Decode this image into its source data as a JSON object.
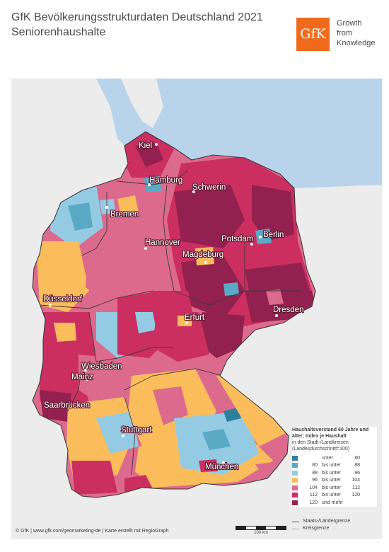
{
  "title": {
    "line1": "GfK Bevölkerungsstrukturdaten Deutschland 2021",
    "line2": "Seniorenhaushalte"
  },
  "logo": {
    "text": "GfK",
    "tagline": [
      "Growth",
      "from",
      "Knowledge"
    ],
    "color": "#f06a1c"
  },
  "cities": [
    "Kiel",
    "Hamburg",
    "Schwerin",
    "Bremen",
    "Berlin",
    "Potsdam",
    "Hannover",
    "Magdeburg",
    "Düsseldorf",
    "Erfurt",
    "Dresden",
    "Wiesbaden",
    "Mainz",
    "Saarbrücken",
    "Stuttgart",
    "München"
  ],
  "legend": {
    "title": "Haushaltsvorstand 60 Jahre und älter; Index je Haushalt",
    "subtitle": "in den Stadt-/Landkreisen (Landesdurchschnitt=100)",
    "classes": [
      {
        "from": "",
        "sep": "unter",
        "to": "80",
        "color": "#2e7f9a"
      },
      {
        "from": "80",
        "sep": "bis unter",
        "to": "88",
        "color": "#5aaac6"
      },
      {
        "from": "88",
        "sep": "bis unter",
        "to": "96",
        "color": "#94cbe2"
      },
      {
        "from": "96",
        "sep": "bis unter",
        "to": "104",
        "color": "#fbbd5c"
      },
      {
        "from": "104",
        "sep": "bis unter",
        "to": "112",
        "color": "#dc6a8c"
      },
      {
        "from": "112",
        "sep": "bis unter",
        "to": "120",
        "color": "#cb2f61"
      },
      {
        "from": "120",
        "sep": "und mehr",
        "to": "",
        "color": "#93214f"
      }
    ],
    "lines": [
      {
        "label": "Staats-/Ländergrenze",
        "color": "#555555"
      },
      {
        "label": "Kreisgrenze",
        "color": "#aaaaaa"
      }
    ]
  },
  "scale": {
    "label": "100 km"
  },
  "footer": "© GfK | www.gfk.com/geomarketing-de | Karte erstellt mit RegioGraph",
  "colors": {
    "water": "#b9d3ea",
    "neighbor": "#ececec",
    "border": "#3a3a3a"
  }
}
